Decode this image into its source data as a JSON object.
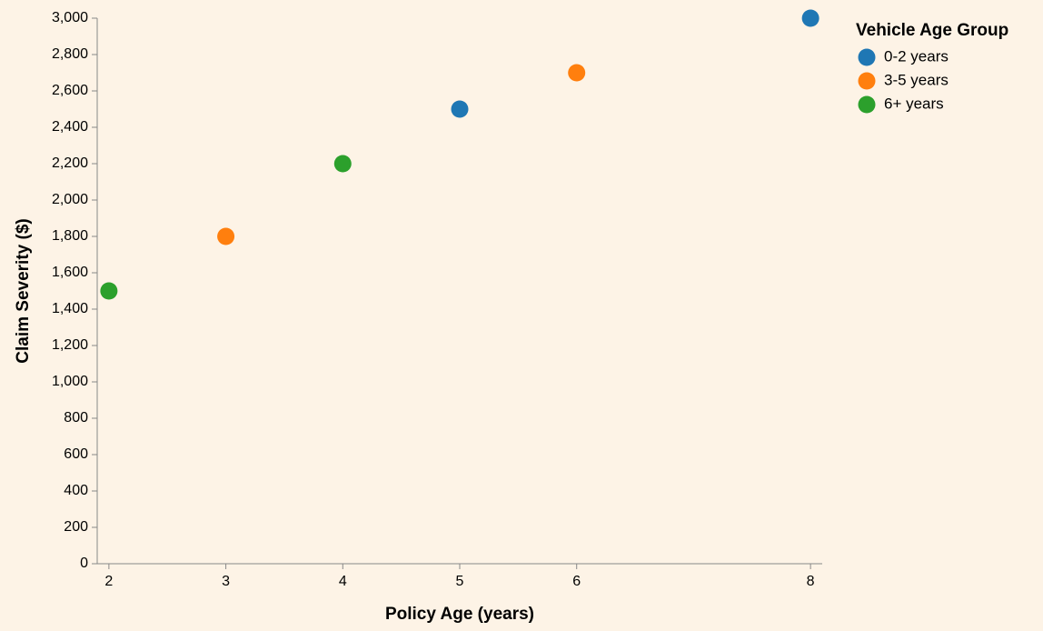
{
  "chart_data": {
    "type": "scatter",
    "xlabel": "Policy Age (years)",
    "ylabel": "Claim Severity ($)",
    "xlim": [
      1.9,
      8.1
    ],
    "ylim": [
      0,
      3000
    ],
    "x_ticks": [
      "2",
      "3",
      "4",
      "5",
      "6",
      "8"
    ],
    "x_tick_values": [
      2,
      3,
      4,
      5,
      6,
      8
    ],
    "y_ticks": [
      "0",
      "200",
      "400",
      "600",
      "800",
      "1,000",
      "1,200",
      "1,400",
      "1,600",
      "1,800",
      "2,000",
      "2,200",
      "2,400",
      "2,600",
      "2,800",
      "3,000"
    ],
    "y_tick_values": [
      0,
      200,
      400,
      600,
      800,
      1000,
      1200,
      1400,
      1600,
      1800,
      2000,
      2200,
      2400,
      2600,
      2800,
      3000
    ],
    "grid": false,
    "legend": {
      "title": "Vehicle Age Group",
      "placement": "top-right",
      "entries": [
        "0-2 years",
        "3-5 years",
        "6+ years"
      ]
    },
    "colors": {
      "0-2 years": "#1f77b4",
      "3-5 years": "#ff7f0e",
      "6+ years": "#2ca02c"
    },
    "points": [
      {
        "x": 2,
        "y": 1500,
        "group": "6+ years"
      },
      {
        "x": 3,
        "y": 1800,
        "group": "3-5 years"
      },
      {
        "x": 4,
        "y": 2200,
        "group": "6+ years"
      },
      {
        "x": 5,
        "y": 2500,
        "group": "0-2 years"
      },
      {
        "x": 6,
        "y": 2700,
        "group": "3-5 years"
      },
      {
        "x": 8,
        "y": 3000,
        "group": "0-2 years"
      }
    ]
  }
}
